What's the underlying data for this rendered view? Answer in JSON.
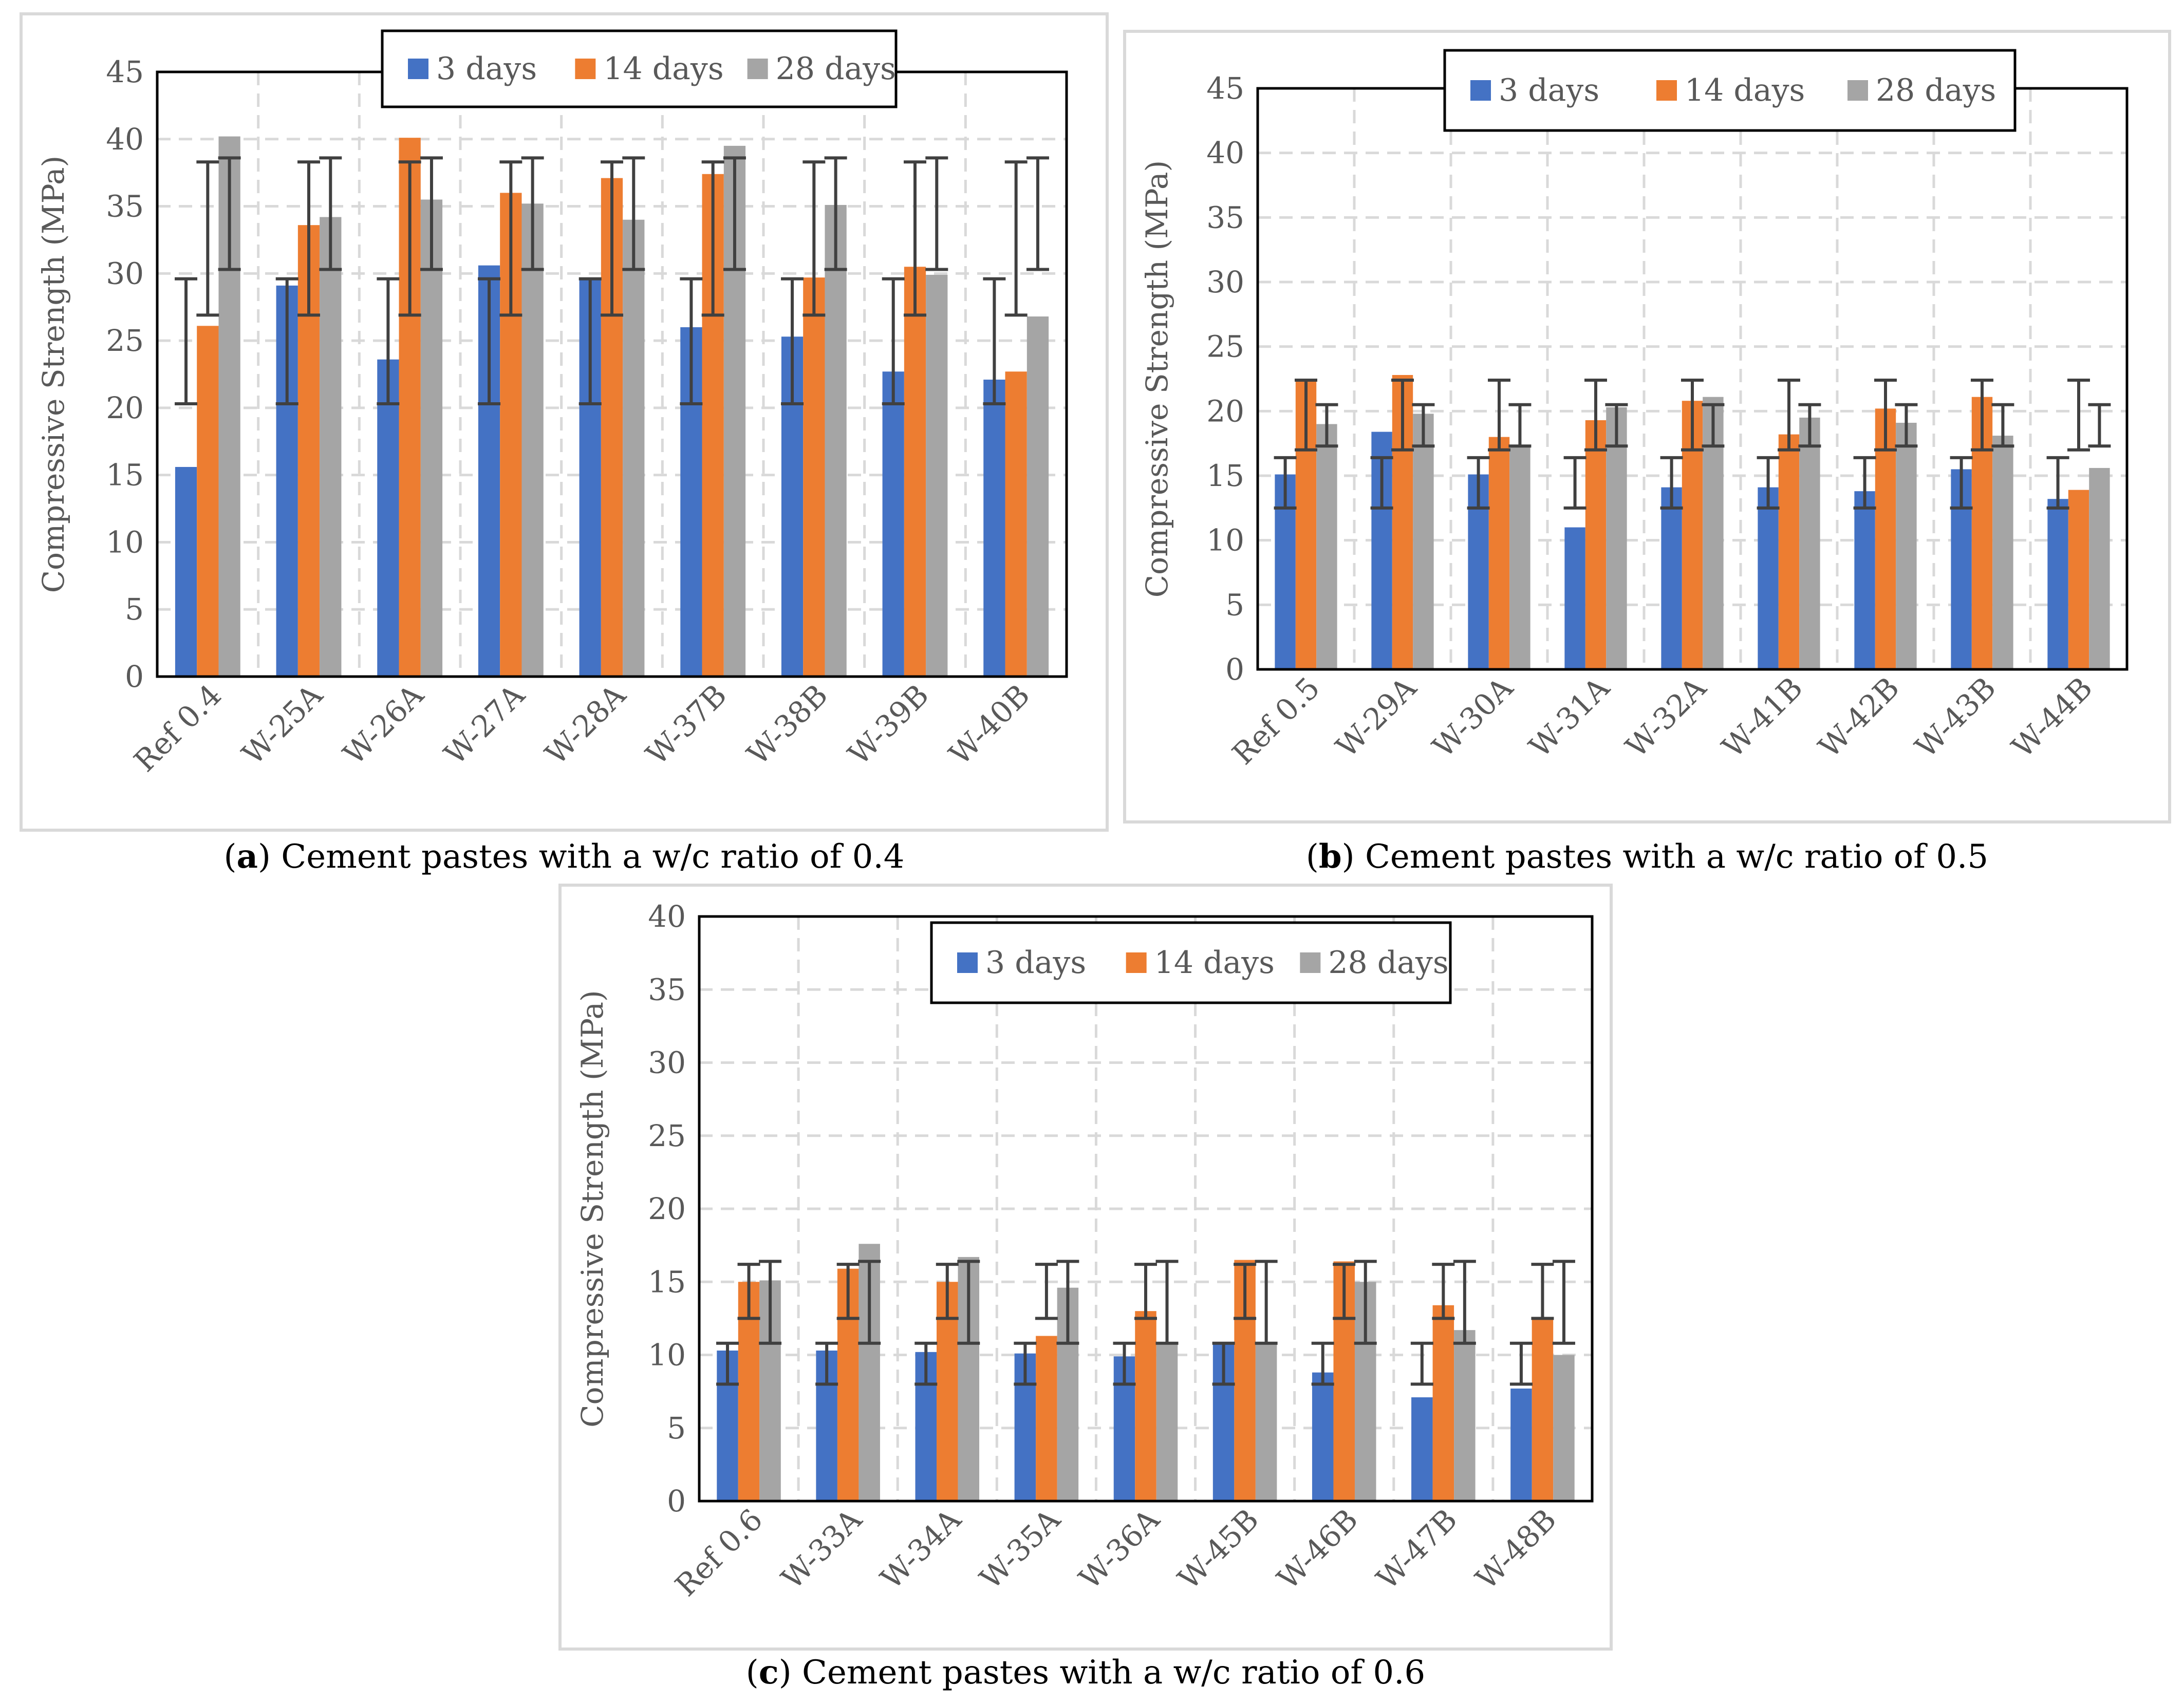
{
  "colors": {
    "d3": "#4472c4",
    "d14": "#ed7d31",
    "d28": "#a5a5a5",
    "error": "#404040",
    "grid": "#d9d9d9",
    "tick": "#595959"
  },
  "legend": {
    "d3": "3 days",
    "d14": "14 days",
    "d28": "28 days"
  },
  "captions": [
    {
      "letter": "a",
      "paren_open": "(",
      "paren_close": ")",
      "text": " Cement pastes with a w/c ratio of 0.4"
    },
    {
      "letter": "b",
      "paren_open": "(",
      "paren_close": ")",
      "text": " Cement pastes with a w/c ratio of 0.5"
    },
    {
      "letter": "c",
      "paren_open": "(",
      "paren_close": ")",
      "text": " Cement pastes with a w/c ratio of 0.6"
    }
  ],
  "chart_data": [
    {
      "id": "a",
      "type": "bar",
      "ylabel": "Compressive Strength (MPa)",
      "ylim": [
        0,
        45
      ],
      "ystep": 5,
      "categories": [
        "Ref 0.4",
        "W-25A",
        "W-26A",
        "W-27A",
        "W-28A",
        "W-37B",
        "W-38B",
        "W-39B",
        "W-40B"
      ],
      "series": [
        {
          "name": "3 days",
          "values": [
            15.6,
            29.1,
            23.6,
            30.6,
            29.7,
            26.0,
            25.3,
            22.7,
            22.1
          ],
          "error_low": 20.3,
          "error_high": 29.6
        },
        {
          "name": "14 days",
          "values": [
            26.1,
            33.6,
            40.1,
            36.0,
            37.1,
            37.4,
            29.7,
            30.5,
            22.7
          ],
          "error_low": 26.9,
          "error_high": 38.3
        },
        {
          "name": "28 days",
          "values": [
            40.2,
            34.2,
            35.5,
            35.2,
            34.0,
            39.5,
            35.1,
            29.9,
            26.8
          ],
          "error_low": 30.3,
          "error_high": 38.6
        }
      ]
    },
    {
      "id": "b",
      "type": "bar",
      "ylabel": "Compressive Strength (MPa)",
      "ylim": [
        0,
        45
      ],
      "ystep": 5,
      "categories": [
        "Ref 0.5",
        "W-29A",
        "W-30A",
        "W-31A",
        "W-32A",
        "W-41B",
        "W-42B",
        "W-43B",
        "W-44B"
      ],
      "series": [
        {
          "name": "3 days",
          "values": [
            15.1,
            18.4,
            15.1,
            11.0,
            14.1,
            14.1,
            13.8,
            15.5,
            13.2
          ],
          "error_low": 12.5,
          "error_high": 16.4
        },
        {
          "name": "14 days",
          "values": [
            22.3,
            22.8,
            18.0,
            19.3,
            20.8,
            18.2,
            20.2,
            21.1,
            13.9
          ],
          "error_low": 17.0,
          "error_high": 22.4
        },
        {
          "name": "28 days",
          "values": [
            19.0,
            19.8,
            17.3,
            20.3,
            21.1,
            19.5,
            19.1,
            18.1,
            15.6
          ],
          "error_low": 17.3,
          "error_high": 20.5
        }
      ]
    },
    {
      "id": "c",
      "type": "bar",
      "ylabel": "Compressive Strength (MPa)",
      "ylim": [
        0,
        40
      ],
      "ystep": 5,
      "categories": [
        "Ref 0.6",
        "W-33A",
        "W-34A",
        "W-35A",
        "W-36A",
        "W-45B",
        "W-46B",
        "W-47B",
        "W-48B"
      ],
      "series": [
        {
          "name": "3 days",
          "values": [
            10.3,
            10.3,
            10.2,
            10.1,
            9.9,
            10.9,
            8.8,
            7.1,
            7.7
          ],
          "error_low": 8.0,
          "error_high": 10.8
        },
        {
          "name": "14 days",
          "values": [
            15.0,
            15.9,
            15.0,
            11.3,
            13.0,
            16.5,
            16.4,
            13.4,
            12.5
          ],
          "error_low": 12.5,
          "error_high": 16.2
        },
        {
          "name": "28 days",
          "values": [
            15.1,
            17.6,
            16.7,
            14.6,
            10.7,
            10.9,
            15.0,
            11.7,
            10.0
          ],
          "error_low": 10.8,
          "error_high": 16.4
        }
      ]
    }
  ]
}
